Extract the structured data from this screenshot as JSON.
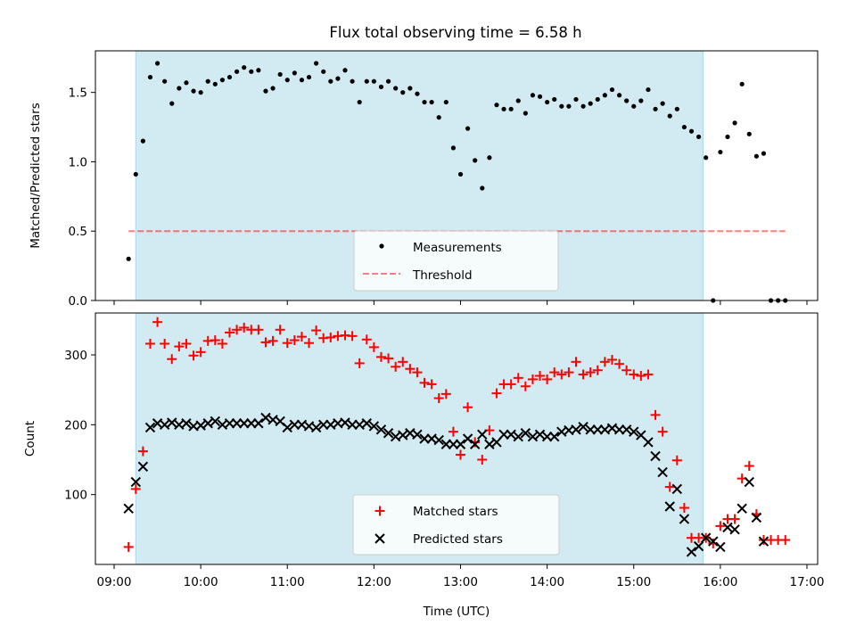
{
  "title": "Flux total observing time = 6.58 h",
  "colors": {
    "observing_shade": "#add8e6",
    "threshold": "#ff0000",
    "measurements": "#000000",
    "matched": "#ff0000",
    "predicted": "#000000"
  },
  "chart_data": [
    {
      "type": "scatter",
      "panel": "top",
      "title": "Flux total observing time = 6.58 h",
      "xlabel": "",
      "ylabel": "Matched/Predicted stars",
      "xlim": [
        "09:00",
        "17:00"
      ],
      "ylim": [
        0,
        1.8
      ],
      "y_ticks": [
        "0.0",
        "0.5",
        "1.0",
        "1.5"
      ],
      "shaded_span": [
        "09:15",
        "15:48"
      ],
      "legend": {
        "position": "bottom-center",
        "entries": [
          "Measurements",
          "Threshold"
        ]
      },
      "threshold": {
        "name": "Threshold",
        "y": 0.5,
        "x_range": [
          "09:10",
          "16:45"
        ]
      },
      "series": [
        {
          "name": "Measurements",
          "marker": "dot",
          "x": [
            "09:10",
            "09:15",
            "09:20",
            "09:25",
            "09:30",
            "09:35",
            "09:40",
            "09:45",
            "09:50",
            "09:55",
            "10:00",
            "10:05",
            "10:10",
            "10:15",
            "10:20",
            "10:25",
            "10:30",
            "10:35",
            "10:40",
            "10:45",
            "10:50",
            "10:55",
            "11:00",
            "11:05",
            "11:10",
            "11:15",
            "11:20",
            "11:25",
            "11:30",
            "11:35",
            "11:40",
            "11:45",
            "11:50",
            "11:55",
            "12:00",
            "12:05",
            "12:10",
            "12:15",
            "12:20",
            "12:25",
            "12:30",
            "12:35",
            "12:40",
            "12:45",
            "12:50",
            "12:55",
            "13:00",
            "13:05",
            "13:10",
            "13:15",
            "13:20",
            "13:25",
            "13:30",
            "13:35",
            "13:40",
            "13:45",
            "13:50",
            "13:55",
            "14:00",
            "14:05",
            "14:10",
            "14:15",
            "14:20",
            "14:25",
            "14:30",
            "14:35",
            "14:40",
            "14:45",
            "14:50",
            "14:55",
            "15:00",
            "15:05",
            "15:10",
            "15:15",
            "15:20",
            "15:25",
            "15:30",
            "15:35",
            "15:40",
            "15:45",
            "15:50",
            "15:55",
            "16:00",
            "16:05",
            "16:10",
            "16:15",
            "16:20",
            "16:25",
            "16:30",
            "16:35",
            "16:40",
            "16:45"
          ],
          "y": [
            0.3,
            0.91,
            1.15,
            1.61,
            1.71,
            1.58,
            1.42,
            1.53,
            1.57,
            1.51,
            1.5,
            1.58,
            1.56,
            1.59,
            1.61,
            1.65,
            1.68,
            1.65,
            1.66,
            1.51,
            1.53,
            1.63,
            1.59,
            1.64,
            1.59,
            1.61,
            1.71,
            1.65,
            1.58,
            1.6,
            1.66,
            1.58,
            1.43,
            1.58,
            1.58,
            1.54,
            1.58,
            1.53,
            1.5,
            1.53,
            1.49,
            1.43,
            1.43,
            1.32,
            1.43,
            1.1,
            0.91,
            1.24,
            1.01,
            0.81,
            1.03,
            1.41,
            1.38,
            1.38,
            1.44,
            1.35,
            1.48,
            1.47,
            1.43,
            1.45,
            1.4,
            1.4,
            1.45,
            1.4,
            1.42,
            1.45,
            1.48,
            1.52,
            1.48,
            1.44,
            1.4,
            1.44,
            1.52,
            1.38,
            1.42,
            1.33,
            1.38,
            1.25,
            1.22,
            1.18,
            1.03,
            0.0,
            1.07,
            1.18,
            1.28,
            1.56,
            1.2,
            1.04,
            1.06,
            0.0,
            0.0,
            0.0
          ]
        }
      ]
    },
    {
      "type": "scatter",
      "panel": "bottom",
      "xlabel": "Time (UTC)",
      "ylabel": "Count",
      "xlim": [
        "09:00",
        "17:00"
      ],
      "ylim": [
        0,
        360
      ],
      "y_ticks": [
        "100",
        "200",
        "300"
      ],
      "x_ticks": [
        "09:00",
        "10:00",
        "11:00",
        "12:00",
        "13:00",
        "14:00",
        "15:00",
        "16:00",
        "17:00"
      ],
      "shaded_span": [
        "09:15",
        "15:48"
      ],
      "legend": {
        "position": "bottom-center",
        "entries": [
          "Matched stars",
          "Predicted stars"
        ]
      },
      "series": [
        {
          "name": "Matched stars",
          "marker": "plus",
          "x": [
            "09:10",
            "09:15",
            "09:20",
            "09:25",
            "09:30",
            "09:35",
            "09:40",
            "09:45",
            "09:50",
            "09:55",
            "10:00",
            "10:05",
            "10:10",
            "10:15",
            "10:20",
            "10:25",
            "10:30",
            "10:35",
            "10:40",
            "10:45",
            "10:50",
            "10:55",
            "11:00",
            "11:05",
            "11:10",
            "11:15",
            "11:20",
            "11:25",
            "11:30",
            "11:35",
            "11:40",
            "11:45",
            "11:50",
            "11:55",
            "12:00",
            "12:05",
            "12:10",
            "12:15",
            "12:20",
            "12:25",
            "12:30",
            "12:35",
            "12:40",
            "12:45",
            "12:50",
            "12:55",
            "13:00",
            "13:05",
            "13:10",
            "13:15",
            "13:20",
            "13:25",
            "13:30",
            "13:35",
            "13:40",
            "13:45",
            "13:50",
            "13:55",
            "14:00",
            "14:05",
            "14:10",
            "14:15",
            "14:20",
            "14:25",
            "14:30",
            "14:35",
            "14:40",
            "14:45",
            "14:50",
            "14:55",
            "15:00",
            "15:05",
            "15:10",
            "15:15",
            "15:20",
            "15:25",
            "15:30",
            "15:35",
            "15:40",
            "15:45",
            "15:50",
            "15:55",
            "16:00",
            "16:05",
            "16:10",
            "16:15",
            "16:20",
            "16:25",
            "16:30",
            "16:35",
            "16:40",
            "16:45"
          ],
          "y": [
            25,
            108,
            162,
            316,
            347,
            316,
            294,
            312,
            316,
            299,
            304,
            320,
            321,
            316,
            332,
            336,
            339,
            336,
            336,
            318,
            320,
            336,
            317,
            321,
            326,
            317,
            335,
            324,
            325,
            327,
            328,
            327,
            288,
            322,
            311,
            297,
            295,
            283,
            290,
            280,
            275,
            260,
            258,
            238,
            244,
            190,
            157,
            225,
            175,
            150,
            192,
            245,
            258,
            258,
            267,
            255,
            265,
            270,
            265,
            275,
            272,
            275,
            290,
            272,
            275,
            278,
            290,
            293,
            287,
            278,
            272,
            270,
            272,
            214,
            190,
            111,
            149,
            81,
            38,
            38,
            38,
            30,
            55,
            65,
            65,
            123,
            141,
            72,
            35,
            35,
            35,
            35
          ]
        },
        {
          "name": "Predicted stars",
          "marker": "x",
          "x": [
            "09:10",
            "09:15",
            "09:20",
            "09:25",
            "09:30",
            "09:35",
            "09:40",
            "09:45",
            "09:50",
            "09:55",
            "10:00",
            "10:05",
            "10:10",
            "10:15",
            "10:20",
            "10:25",
            "10:30",
            "10:35",
            "10:40",
            "10:45",
            "10:50",
            "10:55",
            "11:00",
            "11:05",
            "11:10",
            "11:15",
            "11:20",
            "11:25",
            "11:30",
            "11:35",
            "11:40",
            "11:45",
            "11:50",
            "11:55",
            "12:00",
            "12:05",
            "12:10",
            "12:15",
            "12:20",
            "12:25",
            "12:30",
            "12:35",
            "12:40",
            "12:45",
            "12:50",
            "12:55",
            "13:00",
            "13:05",
            "13:10",
            "13:15",
            "13:20",
            "13:25",
            "13:30",
            "13:35",
            "13:40",
            "13:45",
            "13:50",
            "13:55",
            "14:00",
            "14:05",
            "14:10",
            "14:15",
            "14:20",
            "14:25",
            "14:30",
            "14:35",
            "14:40",
            "14:45",
            "14:50",
            "14:55",
            "15:00",
            "15:05",
            "15:10",
            "15:15",
            "15:20",
            "15:25",
            "15:30",
            "15:35",
            "15:40",
            "15:45",
            "15:50",
            "15:55",
            "16:00",
            "16:05",
            "16:10",
            "16:15",
            "16:20",
            "16:25",
            "16:30"
          ],
          "y": [
            80,
            118,
            140,
            196,
            202,
            200,
            203,
            200,
            202,
            198,
            199,
            202,
            205,
            200,
            202,
            202,
            202,
            202,
            202,
            210,
            207,
            205,
            196,
            200,
            200,
            198,
            196,
            200,
            200,
            202,
            203,
            200,
            200,
            202,
            198,
            193,
            188,
            183,
            185,
            188,
            186,
            180,
            180,
            178,
            172,
            172,
            172,
            180,
            172,
            186,
            172,
            175,
            186,
            186,
            183,
            188,
            183,
            186,
            183,
            183,
            190,
            192,
            193,
            197,
            193,
            193,
            193,
            195,
            193,
            193,
            190,
            185,
            175,
            155,
            132,
            83,
            108,
            65,
            18,
            26,
            38,
            33,
            25,
            53,
            50,
            80,
            118,
            67,
            33
          ]
        }
      ]
    }
  ]
}
